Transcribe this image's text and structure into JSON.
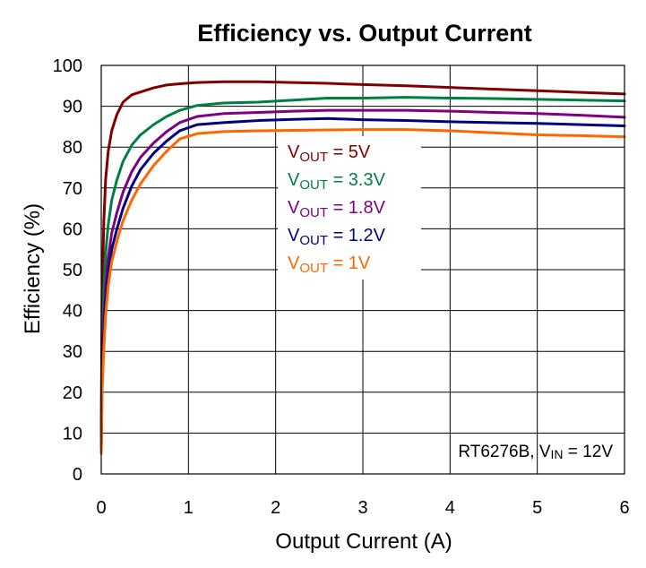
{
  "chart_data": {
    "type": "line",
    "title": "Efficiency vs. Output Current",
    "xlabel": "Output Current (A)",
    "ylabel": "Efficiency (%)",
    "xlim": [
      0,
      6
    ],
    "ylim": [
      0,
      100
    ],
    "x_ticks": [
      "0",
      "1",
      "2",
      "3",
      "4",
      "5",
      "6"
    ],
    "y_ticks": [
      "0",
      "10",
      "20",
      "30",
      "40",
      "50",
      "60",
      "70",
      "80",
      "90",
      "100"
    ],
    "grid": true,
    "legend_position": "center",
    "annotation": {
      "prefix": "RT6276B, V",
      "sub": "IN",
      "suffix": " = 12V"
    },
    "series": [
      {
        "name_main": "V",
        "name_sub": "OUT",
        "name_value": " = 5V",
        "color": "#800000",
        "x": [
          0.0,
          0.01,
          0.03,
          0.05,
          0.08,
          0.12,
          0.18,
          0.25,
          0.35,
          0.45,
          0.6,
          0.75,
          0.9,
          1.1,
          1.4,
          1.8,
          2.2,
          2.6,
          3.0,
          3.5,
          4.0,
          4.5,
          5.0,
          5.5,
          6.0
        ],
        "y": [
          12,
          45,
          62,
          72,
          79,
          84,
          88,
          91,
          92.8,
          93.5,
          94.5,
          95.2,
          95.5,
          95.8,
          96,
          96,
          95.8,
          95.6,
          95.3,
          95,
          94.6,
          94.2,
          93.8,
          93.4,
          93
        ]
      },
      {
        "name_main": "V",
        "name_sub": "OUT",
        "name_value": " = 3.3V",
        "color": "#008040",
        "x": [
          0.0,
          0.01,
          0.03,
          0.05,
          0.08,
          0.12,
          0.18,
          0.25,
          0.35,
          0.45,
          0.6,
          0.75,
          0.9,
          1.1,
          1.4,
          1.8,
          2.2,
          2.6,
          3.0,
          3.5,
          4.0,
          4.5,
          5.0,
          5.5,
          6.0
        ],
        "y": [
          8,
          30,
          45,
          54,
          61,
          67,
          72,
          76.5,
          80.5,
          83,
          85.5,
          87.5,
          89,
          90.2,
          90.8,
          91,
          91.5,
          92,
          92,
          92.2,
          92,
          91.9,
          91.7,
          91.5,
          91.3
        ]
      },
      {
        "name_main": "V",
        "name_sub": "OUT",
        "name_value": " = 1.8V",
        "color": "#800080",
        "x": [
          0.0,
          0.01,
          0.03,
          0.05,
          0.08,
          0.12,
          0.18,
          0.25,
          0.35,
          0.45,
          0.6,
          0.75,
          0.9,
          1.1,
          1.4,
          1.8,
          2.2,
          2.6,
          3.0,
          3.5,
          4.0,
          4.5,
          5.0,
          5.5,
          6.0
        ],
        "y": [
          7,
          25,
          38,
          46,
          53,
          59,
          64,
          69,
          74,
          77.5,
          81,
          83.8,
          86,
          87.5,
          88.2,
          88.5,
          88.8,
          89,
          89,
          89,
          88.8,
          88.5,
          88.2,
          87.8,
          87.3
        ]
      },
      {
        "name_main": "V",
        "name_sub": "OUT",
        "name_value": " = 1.2V",
        "color": "#000080",
        "x": [
          0.0,
          0.01,
          0.03,
          0.05,
          0.08,
          0.12,
          0.18,
          0.25,
          0.35,
          0.45,
          0.6,
          0.75,
          0.9,
          1.1,
          1.4,
          1.8,
          2.2,
          2.6,
          3.0,
          3.5,
          4.0,
          4.5,
          5.0,
          5.5,
          6.0
        ],
        "y": [
          6,
          22,
          34,
          42,
          49,
          55,
          60,
          65,
          70.5,
          74.5,
          78.5,
          81.5,
          84,
          85.5,
          86,
          86.5,
          86.8,
          87,
          86.7,
          86.5,
          86.2,
          86,
          85.8,
          85.5,
          85.2
        ]
      },
      {
        "name_main": "V",
        "name_sub": "OUT",
        "name_value": " = 1V",
        "color": "#ff6600",
        "x": [
          0.0,
          0.01,
          0.03,
          0.05,
          0.08,
          0.12,
          0.18,
          0.25,
          0.35,
          0.45,
          0.6,
          0.75,
          0.9,
          1.1,
          1.4,
          1.8,
          2.2,
          2.6,
          3.0,
          3.5,
          4.0,
          4.5,
          5.0,
          5.5,
          6.0
        ],
        "y": [
          5,
          20,
          31,
          39,
          46,
          52,
          57,
          62,
          67,
          71,
          75.5,
          79,
          82,
          83.3,
          83.8,
          84,
          84.1,
          84.2,
          84.3,
          84.3,
          84,
          83.5,
          83,
          82.8,
          82.5
        ]
      }
    ]
  }
}
